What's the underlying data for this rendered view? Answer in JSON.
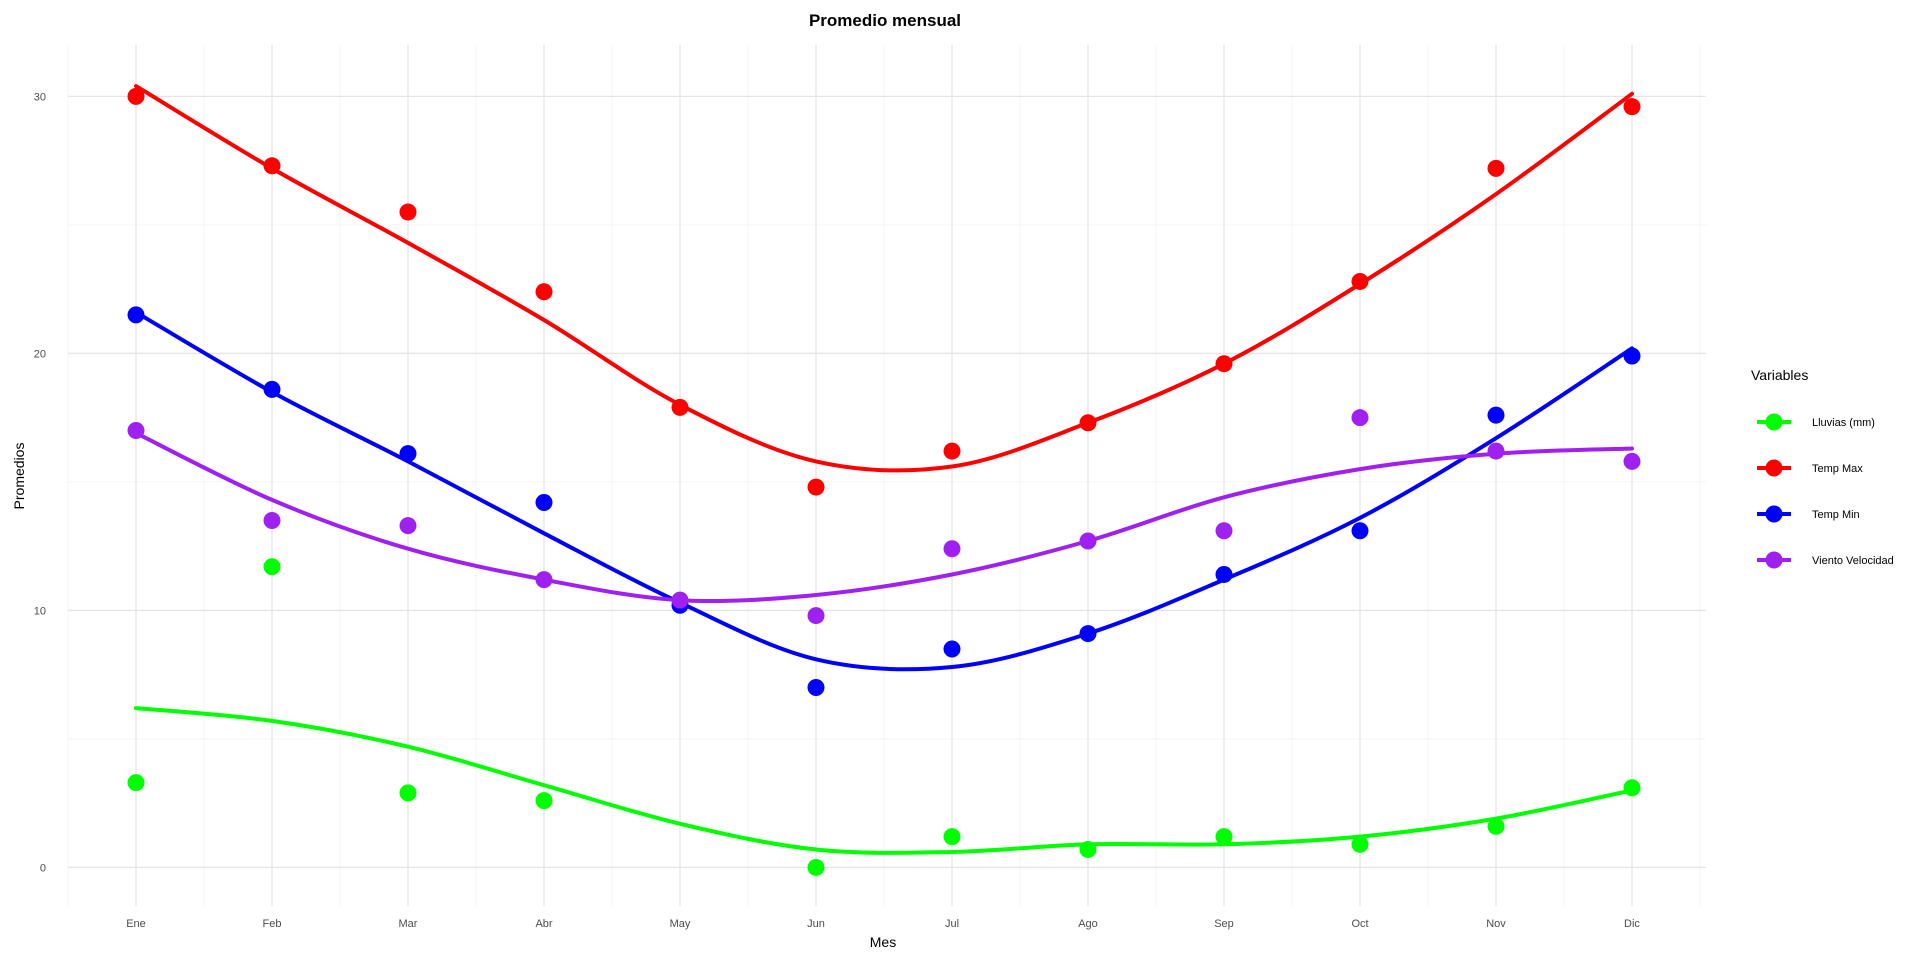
{
  "chart_data": {
    "type": "line",
    "title": "Promedio mensual",
    "xlabel": "Mes",
    "ylabel": "Promedios",
    "categories": [
      "Ene",
      "Feb",
      "Mar",
      "Abr",
      "May",
      "Jun",
      "Jul",
      "Ago",
      "Sep",
      "Oct",
      "Nov",
      "Dic"
    ],
    "ylim": [
      -1.5,
      32
    ],
    "yticks": [
      0,
      10,
      20,
      30
    ],
    "grid": true,
    "legend": {
      "title": "Variables",
      "placement": "right"
    },
    "series": [
      {
        "name": "Lluvias (mm)",
        "color": "#00ff00",
        "points": [
          3.3,
          11.7,
          2.9,
          2.6,
          null,
          0.0,
          1.2,
          0.7,
          1.2,
          0.9,
          1.6,
          3.1
        ],
        "smooth": [
          6.2,
          5.7,
          4.7,
          3.2,
          1.7,
          0.7,
          0.6,
          0.9,
          0.9,
          1.2,
          1.9,
          3.0
        ]
      },
      {
        "name": "Temp Max",
        "color": "#ff0000",
        "points": [
          30.0,
          27.3,
          25.5,
          22.4,
          17.9,
          14.8,
          16.2,
          17.3,
          19.6,
          22.8,
          27.2,
          29.6
        ],
        "smooth": [
          30.4,
          27.2,
          24.3,
          21.3,
          18.0,
          15.8,
          15.6,
          17.3,
          19.6,
          22.7,
          26.2,
          30.1
        ]
      },
      {
        "name": "Temp Min",
        "color": "#0000ff",
        "points": [
          21.5,
          18.6,
          16.1,
          14.2,
          10.2,
          7.0,
          8.5,
          9.1,
          11.4,
          13.1,
          17.6,
          19.9
        ],
        "smooth": [
          21.6,
          18.5,
          15.8,
          13.0,
          10.3,
          8.1,
          7.8,
          9.1,
          11.2,
          13.6,
          16.7,
          20.2
        ]
      },
      {
        "name": "Viento Velocidad",
        "color": "#a020f0",
        "points": [
          17.0,
          13.5,
          13.3,
          11.2,
          10.4,
          9.8,
          12.4,
          12.7,
          13.1,
          17.5,
          16.2,
          15.8
        ],
        "smooth": [
          16.9,
          14.3,
          12.4,
          11.2,
          10.4,
          10.6,
          11.4,
          12.7,
          14.4,
          15.5,
          16.1,
          16.3
        ]
      }
    ]
  }
}
